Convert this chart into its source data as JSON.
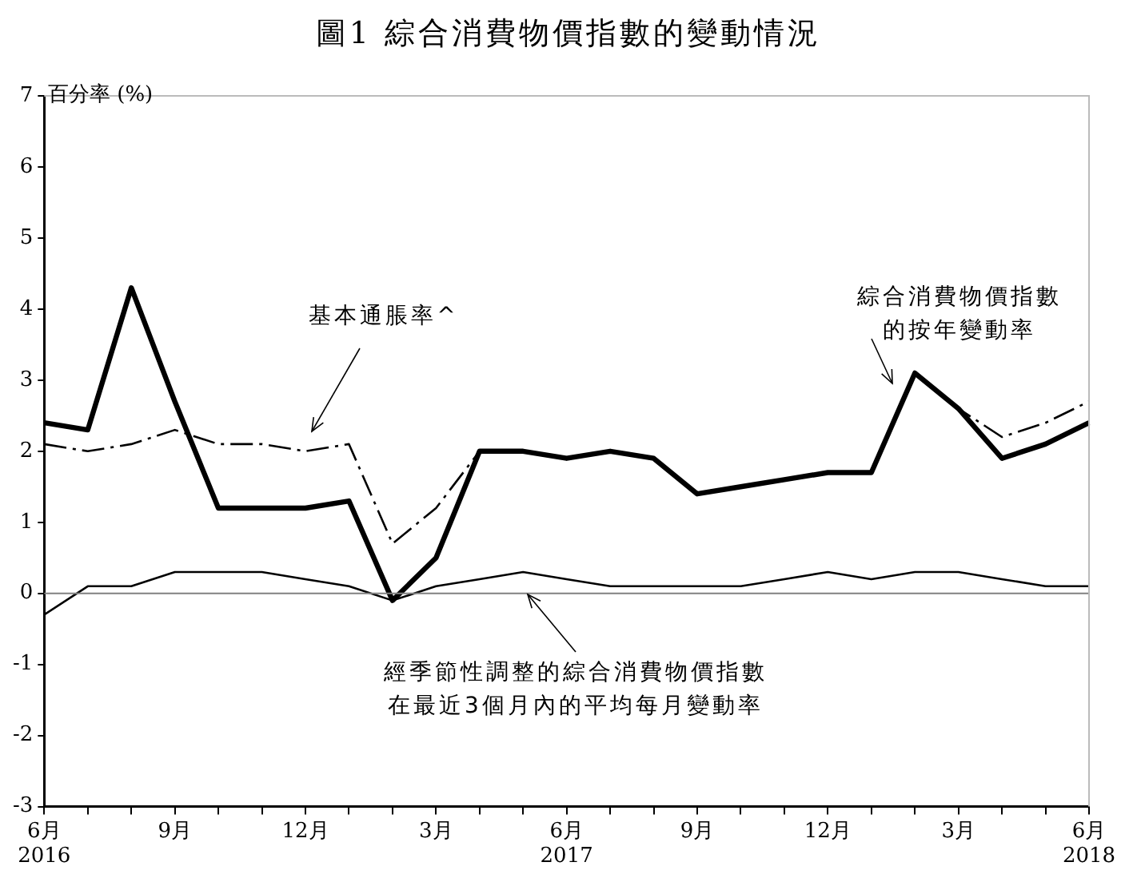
{
  "chart_data": {
    "type": "line",
    "title": "圖1  綜合消費物價指數的變動情況",
    "ylabel": "百分率 (%)",
    "categories": [
      "6月\n2016",
      null,
      null,
      "9月",
      null,
      null,
      "12月",
      null,
      null,
      "3月",
      null,
      null,
      "6月\n2017",
      null,
      null,
      "9月",
      null,
      null,
      "12月",
      null,
      null,
      "3月",
      null,
      null,
      "6月\n2018"
    ],
    "series": [
      {
        "name": "綜合消費物價指數的按年變動率",
        "color": "#000000",
        "line_style": "solid",
        "values": [
          2.4,
          2.3,
          4.3,
          2.7,
          1.2,
          1.2,
          1.2,
          1.3,
          -0.1,
          0.5,
          2.0,
          2.0,
          1.9,
          2.0,
          1.9,
          1.4,
          1.5,
          1.6,
          1.7,
          1.7,
          3.1,
          2.6,
          1.9,
          2.1,
          2.4
        ]
      },
      {
        "name": "基本通脹率^",
        "color": "#000000",
        "line_style": "dashed",
        "values": [
          2.1,
          2.0,
          2.1,
          2.3,
          2.1,
          2.1,
          2.0,
          2.1,
          0.7,
          1.2,
          2.0,
          2.0,
          1.9,
          2.0,
          1.9,
          1.4,
          1.5,
          1.6,
          1.7,
          1.7,
          3.1,
          2.6,
          2.2,
          2.4,
          2.7
        ]
      },
      {
        "name": "經季節性調整的綜合消費物價指數在最近3個月內的平均每月變動率",
        "color": "#000000",
        "line_style": "solid",
        "values": [
          -0.3,
          0.1,
          0.1,
          0.3,
          0.3,
          0.3,
          0.2,
          0.1,
          -0.1,
          0.1,
          0.2,
          0.3,
          0.2,
          0.1,
          0.1,
          0.1,
          0.1,
          0.2,
          0.3,
          0.2,
          0.3,
          0.3,
          0.2,
          0.1,
          0.1
        ]
      }
    ],
    "ylim": [
      -3,
      7
    ],
    "yticks": [
      -3,
      -2,
      -1,
      0,
      1,
      2,
      3,
      4,
      5,
      6,
      7
    ],
    "ref_lines": [
      {
        "axis": "y",
        "value": 0,
        "color": "#808080"
      }
    ],
    "grid": false,
    "legend": false,
    "marker": "none"
  }
}
